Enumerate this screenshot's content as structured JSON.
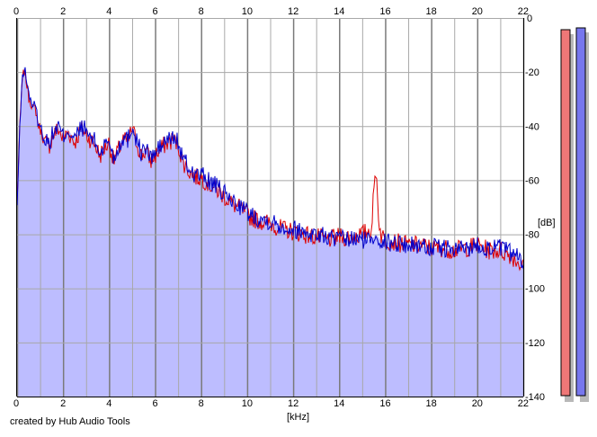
{
  "footer": {
    "credit": "created by Hub Audio Tools"
  },
  "colors": {
    "fill": "#bdbdff",
    "blue_line": "#0000cc",
    "red_line": "#dd0000",
    "grid_major": "#a8a8a8",
    "grid_even": "#7a7a7a",
    "meter_left": "#ee7777",
    "meter_right": "#7777ee",
    "meter_shadow": "#b8b8b8"
  },
  "chart_data": {
    "type": "area",
    "title": "",
    "xlabel": "[kHz]",
    "ylabel": "[dB]",
    "xlim": [
      0,
      22
    ],
    "ylim": [
      -140,
      0
    ],
    "x_ticks": [
      "0",
      "2",
      "4",
      "6",
      "8",
      "10",
      "12",
      "14",
      "16",
      "18",
      "20",
      "22"
    ],
    "y_ticks": [
      "0",
      "-20",
      "-40",
      "-60",
      "-80",
      "-100",
      "-120",
      "-140"
    ],
    "x_gridlines": [
      1,
      3,
      5,
      7,
      9,
      11,
      13,
      15,
      17,
      19,
      21
    ],
    "grid": true,
    "series": [
      {
        "color": "blue",
        "x": [
          0,
          0.1,
          0.2,
          0.3,
          0.4,
          0.5,
          0.6,
          0.7,
          0.8,
          0.9,
          1.0,
          1.2,
          1.4,
          1.6,
          1.8,
          2.0,
          2.2,
          2.5,
          2.8,
          3.0,
          3.2,
          3.4,
          3.6,
          3.8,
          4.0,
          4.2,
          4.4,
          4.6,
          4.8,
          5.0,
          5.2,
          5.4,
          5.6,
          5.8,
          6.0,
          6.2,
          6.4,
          6.6,
          6.8,
          7.0,
          7.2,
          7.5,
          7.8,
          8.0,
          8.3,
          8.6,
          9.0,
          9.4,
          9.8,
          10.0,
          10.5,
          11.0,
          11.5,
          12.0,
          12.5,
          13.0,
          13.5,
          14.0,
          14.5,
          15.0,
          15.4,
          15.6,
          15.8,
          16.0,
          16.5,
          17.0,
          17.5,
          18.0,
          18.5,
          19.0,
          19.5,
          20.0,
          20.5,
          21.0,
          21.5,
          22.0
        ],
        "values": [
          -70,
          -45,
          -25,
          -18,
          -22,
          -28,
          -30,
          -33,
          -32,
          -38,
          -40,
          -45,
          -46,
          -42,
          -40,
          -44,
          -41,
          -45,
          -40,
          -42,
          -44,
          -46,
          -50,
          -47,
          -45,
          -52,
          -48,
          -44,
          -45,
          -40,
          -45,
          -50,
          -48,
          -52,
          -50,
          -48,
          -46,
          -45,
          -44,
          -46,
          -52,
          -56,
          -58,
          -58,
          -60,
          -62,
          -65,
          -68,
          -70,
          -72,
          -74,
          -75,
          -77,
          -78,
          -79,
          -80,
          -81,
          -82,
          -82,
          -82,
          -82,
          -80,
          -82,
          -83,
          -83,
          -84,
          -84,
          -85,
          -85,
          -86,
          -85,
          -84,
          -85,
          -85,
          -87,
          -90
        ]
      },
      {
        "color": "red",
        "x": [
          0,
          0.1,
          0.2,
          0.3,
          0.4,
          0.5,
          0.6,
          0.7,
          0.8,
          0.9,
          1.0,
          1.2,
          1.4,
          1.6,
          1.8,
          2.0,
          2.2,
          2.5,
          2.8,
          3.0,
          3.2,
          3.4,
          3.6,
          3.8,
          4.0,
          4.2,
          4.4,
          4.6,
          4.8,
          5.0,
          5.2,
          5.4,
          5.6,
          5.8,
          6.0,
          6.2,
          6.4,
          6.6,
          6.8,
          7.0,
          7.2,
          7.5,
          7.8,
          8.0,
          8.3,
          8.6,
          9.0,
          9.4,
          9.8,
          10.0,
          10.5,
          11.0,
          11.5,
          12.0,
          12.5,
          13.0,
          13.5,
          14.0,
          14.5,
          15.0,
          15.4,
          15.5,
          15.6,
          15.7,
          15.8,
          16.0,
          16.5,
          17.0,
          17.5,
          18.0,
          18.5,
          19.0,
          19.5,
          20.0,
          20.5,
          21.0,
          21.5,
          22.0
        ],
        "values": [
          -68,
          -44,
          -26,
          -19,
          -23,
          -29,
          -31,
          -34,
          -33,
          -39,
          -41,
          -46,
          -47,
          -43,
          -41,
          -45,
          -42,
          -46,
          -41,
          -43,
          -45,
          -47,
          -51,
          -48,
          -46,
          -53,
          -49,
          -45,
          -46,
          -41,
          -46,
          -51,
          -49,
          -53,
          -51,
          -49,
          -47,
          -46,
          -45,
          -47,
          -53,
          -57,
          -59,
          -59,
          -61,
          -63,
          -66,
          -69,
          -71,
          -73,
          -75,
          -76,
          -78,
          -79,
          -80,
          -81,
          -82,
          -81,
          -81,
          -80,
          -78,
          -65,
          -55,
          -72,
          -80,
          -82,
          -83,
          -84,
          -84,
          -85,
          -85,
          -86,
          -85,
          -84,
          -86,
          -86,
          -88,
          -92
        ]
      }
    ]
  }
}
